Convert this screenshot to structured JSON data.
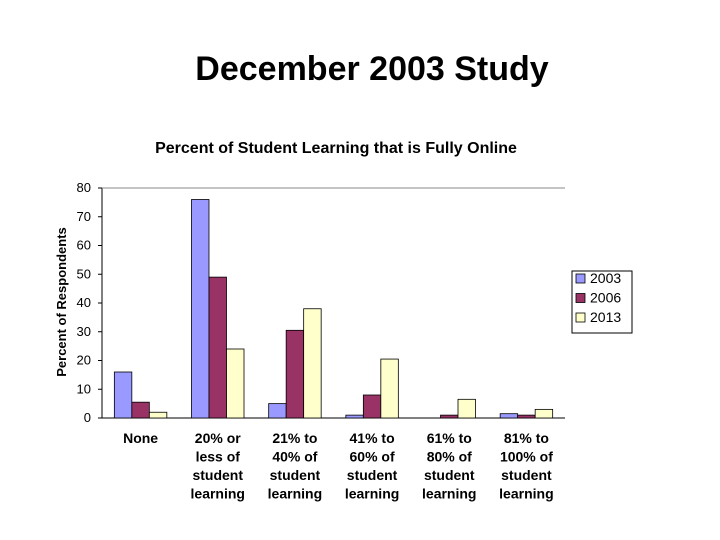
{
  "slide_title": "December 2003 Study",
  "chart_data": {
    "type": "bar",
    "title": "Percent of Student Learning that is Fully Online",
    "xlabel": "",
    "ylabel": "Percent of Respondents",
    "ylim": [
      0,
      80
    ],
    "yticks": [
      0,
      10,
      20,
      30,
      40,
      50,
      60,
      70,
      80
    ],
    "grid": false,
    "legend_position": "right",
    "categories": [
      [
        "None"
      ],
      [
        "20% or",
        "less of",
        "student",
        "learning"
      ],
      [
        "21% to",
        "40% of",
        "student",
        "learning"
      ],
      [
        "41% to",
        "60% of",
        "student",
        "learning"
      ],
      [
        "61% to",
        "80% of",
        "student",
        "learning"
      ],
      [
        "81% to",
        "100% of",
        "student",
        "learning"
      ]
    ],
    "series": [
      {
        "name": "2003",
        "color": "#9999ff",
        "values": [
          16,
          76,
          5,
          1,
          0,
          1.5
        ]
      },
      {
        "name": "2006",
        "color": "#993366",
        "values": [
          5.5,
          49,
          30.5,
          8,
          1,
          1
        ]
      },
      {
        "name": "2013",
        "color": "#ffffcc",
        "values": [
          2,
          24,
          38,
          20.5,
          6.5,
          3
        ]
      }
    ]
  }
}
